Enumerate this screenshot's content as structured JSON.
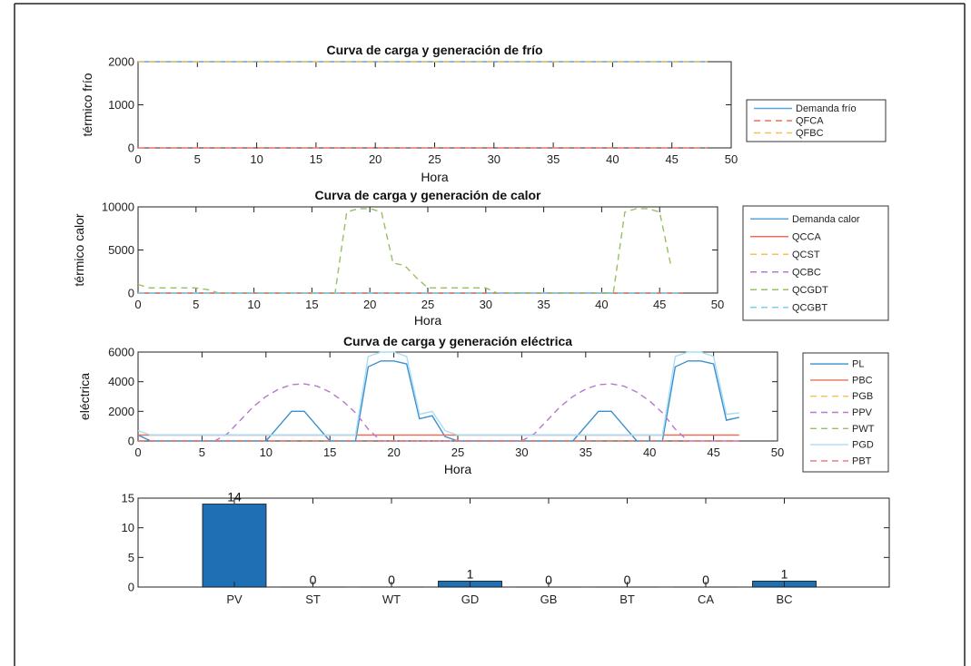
{
  "chart_data": [
    {
      "type": "line",
      "title": "Curva de carga y generación de frío",
      "xlabel": "Hora",
      "ylabel": "térmico frío",
      "xlim": [
        0,
        50
      ],
      "ylim": [
        0,
        2000
      ],
      "xticks": [
        0,
        5,
        10,
        15,
        20,
        25,
        30,
        35,
        40,
        45,
        50
      ],
      "yticks": [
        0,
        1000,
        2000
      ],
      "grid": false,
      "legend_position": "outside-right",
      "series": [
        {
          "name": "Demanda frío",
          "color": "#5ba4dc",
          "dash": "solid",
          "x": [
            0,
            48
          ],
          "y": [
            2000,
            2000
          ]
        },
        {
          "name": "QFCA",
          "color": "#e8705a",
          "dash": "dashed",
          "x": [
            0,
            48
          ],
          "y": [
            0,
            0
          ]
        },
        {
          "name": "QFBC",
          "color": "#f2c255",
          "dash": "dashed",
          "x": [
            0,
            48
          ],
          "y": [
            2000,
            2000
          ]
        }
      ]
    },
    {
      "type": "line",
      "title": "Curva de carga y generación de calor",
      "xlabel": "Hora",
      "ylabel": "térmico calor",
      "xlim": [
        0,
        50
      ],
      "ylim": [
        0,
        10000
      ],
      "xticks": [
        0,
        5,
        10,
        15,
        20,
        25,
        30,
        35,
        40,
        45,
        50
      ],
      "yticks": [
        0,
        5000,
        10000
      ],
      "grid": false,
      "legend_position": "outside-right",
      "series": [
        {
          "name": "Demanda calor",
          "color": "#5ba4dc",
          "dash": "solid",
          "x": [
            0,
            47
          ],
          "y": [
            0,
            0
          ]
        },
        {
          "name": "QCCA",
          "color": "#e8705a",
          "dash": "solid",
          "x": [
            0,
            47
          ],
          "y": [
            0,
            0
          ]
        },
        {
          "name": "QCST",
          "color": "#f2c255",
          "dash": "dashed",
          "x": [
            0,
            47
          ],
          "y": [
            0,
            0
          ]
        },
        {
          "name": "QCBC",
          "color": "#b678d0",
          "dash": "dashed",
          "x": [
            0,
            47
          ],
          "y": [
            0,
            0
          ]
        },
        {
          "name": "QCGDT",
          "color": "#98c060",
          "dash": "dashed",
          "x": [
            0,
            1,
            2,
            3,
            4,
            5,
            6,
            7,
            8,
            9,
            10,
            11,
            12,
            13,
            14,
            15,
            16,
            17,
            18,
            19,
            20,
            21,
            22,
            23,
            24,
            25,
            26,
            27,
            28,
            29,
            30,
            31,
            32,
            33,
            34,
            35,
            36,
            37,
            38,
            39,
            40,
            41,
            42,
            43,
            44,
            45,
            46
          ],
          "y": [
            1000,
            600,
            600,
            600,
            600,
            600,
            400,
            0,
            0,
            0,
            0,
            0,
            0,
            0,
            0,
            0,
            0,
            0,
            9400,
            9800,
            9800,
            9400,
            3500,
            3200,
            1800,
            600,
            600,
            600,
            600,
            600,
            600,
            0,
            0,
            0,
            0,
            0,
            0,
            0,
            0,
            0,
            0,
            0,
            9400,
            9800,
            9800,
            9400,
            3000
          ]
        },
        {
          "name": "QCGBT",
          "color": "#7cd0f0",
          "dash": "dashed",
          "x": [
            0,
            47
          ],
          "y": [
            0,
            0
          ]
        }
      ]
    },
    {
      "type": "line",
      "title": "Curva de carga y generación eléctrica",
      "xlabel": "Hora",
      "ylabel": "eléctrica",
      "xlim": [
        0,
        50
      ],
      "ylim": [
        0,
        6000
      ],
      "xticks": [
        0,
        5,
        10,
        15,
        20,
        25,
        30,
        35,
        40,
        45,
        50
      ],
      "yticks": [
        0,
        2000,
        4000,
        6000
      ],
      "grid": false,
      "legend_position": "outside-right",
      "series": [
        {
          "name": "PL",
          "color": "#3a8fd0",
          "dash": "solid",
          "x": [
            0,
            1,
            2,
            3,
            4,
            5,
            6,
            7,
            8,
            9,
            10,
            11,
            12,
            13,
            14,
            15,
            16,
            17,
            18,
            19,
            20,
            21,
            22,
            23,
            24,
            25,
            26,
            27,
            28,
            29,
            30,
            31,
            32,
            33,
            34,
            35,
            36,
            37,
            38,
            39,
            40,
            41,
            42,
            43,
            44,
            45,
            46,
            47
          ],
          "y": [
            400,
            0,
            0,
            0,
            0,
            0,
            0,
            0,
            0,
            0,
            0,
            1000,
            2000,
            2000,
            1000,
            0,
            0,
            0,
            5000,
            5400,
            5400,
            5200,
            1500,
            1700,
            300,
            0,
            0,
            0,
            0,
            0,
            0,
            0,
            0,
            0,
            0,
            1000,
            2000,
            2000,
            1000,
            0,
            0,
            0,
            5000,
            5400,
            5400,
            5200,
            1400,
            1600
          ]
        },
        {
          "name": "PBC",
          "color": "#e8705a",
          "dash": "solid",
          "x": [
            0,
            47
          ],
          "y": [
            400,
            400
          ]
        },
        {
          "name": "PGB",
          "color": "#f2c255",
          "dash": "dashed",
          "x": [
            0,
            47
          ],
          "y": [
            0,
            0
          ]
        },
        {
          "name": "PPV",
          "color": "#b678d0",
          "dash": "dashed",
          "x": [
            0,
            6,
            7,
            8,
            9,
            10,
            11,
            12,
            13,
            14,
            15,
            16,
            17,
            18,
            19,
            20,
            30,
            31,
            32,
            33,
            34,
            35,
            36,
            37,
            38,
            39,
            40,
            41,
            42,
            43,
            47
          ],
          "y": [
            0,
            0,
            500,
            1400,
            2300,
            3000,
            3500,
            3800,
            3850,
            3700,
            3300,
            2700,
            1900,
            800,
            0,
            0,
            0,
            500,
            1400,
            2300,
            3000,
            3500,
            3800,
            3850,
            3700,
            3300,
            2700,
            1900,
            800,
            0,
            0
          ]
        },
        {
          "name": "PWT",
          "color": "#98c060",
          "dash": "dashed",
          "x": [
            0,
            47
          ],
          "y": [
            0,
            0
          ]
        },
        {
          "name": "PGD",
          "color": "#a8def4",
          "dash": "solid",
          "x": [
            0,
            1,
            17,
            18,
            19,
            20,
            21,
            22,
            23,
            24,
            25,
            41,
            42,
            43,
            44,
            45,
            46,
            47
          ],
          "y": [
            700,
            400,
            400,
            5700,
            6000,
            6000,
            5700,
            1800,
            2000,
            700,
            400,
            400,
            5700,
            6000,
            6000,
            5700,
            1800,
            1900
          ]
        },
        {
          "name": "PBT",
          "color": "#e8707a",
          "dash": "dashed",
          "x": [
            0,
            47
          ],
          "y": [
            0,
            0
          ]
        }
      ]
    },
    {
      "type": "bar",
      "title": "",
      "categories": [
        "PV",
        "ST",
        "WT",
        "GD",
        "GB",
        "BT",
        "CA",
        "BC"
      ],
      "values": [
        14,
        0,
        0,
        1,
        0,
        0,
        0,
        1
      ],
      "data_labels": [
        "14",
        "0",
        "0",
        "1",
        "0",
        "0",
        "0",
        "1"
      ],
      "ylim": [
        0,
        15
      ],
      "yticks": [
        0,
        5,
        10,
        15
      ],
      "bar_color": "#1f6fb5",
      "grid": false
    }
  ]
}
